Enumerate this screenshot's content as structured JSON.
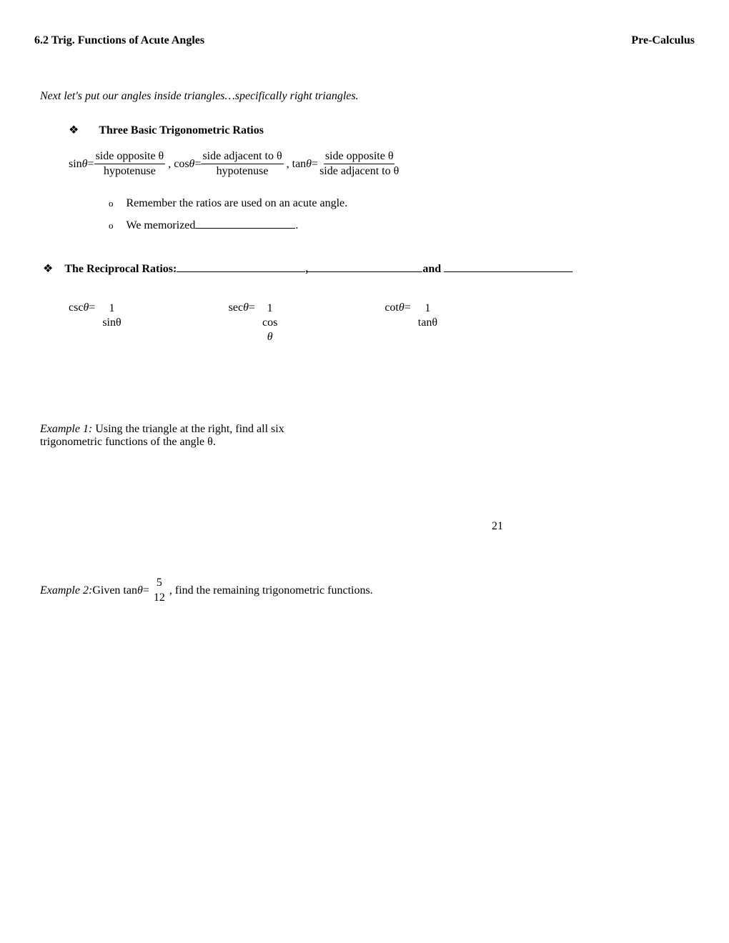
{
  "header": {
    "left": "6.2 Trig. Functions of Acute Angles",
    "right": "Pre-Calculus"
  },
  "intro": "Next let's put our angles inside triangles…specifically right triangles.",
  "bullet_symbol": "❖",
  "sub_bullet_symbol": "o",
  "section1": {
    "title": "Three Basic Trigonometric Ratios",
    "sin_label": "sin",
    "cos_label": "cos",
    "tan_label": "tan",
    "theta": "θ",
    "eq": " = ",
    "comma": ",  ",
    "sin_num": "side opposite θ",
    "sin_den": "hypotenuse",
    "cos_num": "side adjacent to θ",
    "cos_den": "hypotenuse",
    "tan_num": "side opposite θ",
    "tan_den": "side adjacent to θ",
    "sub1": "Remember the ratios are used on an acute angle.",
    "sub2_a": "We memorized",
    "sub2_b": "."
  },
  "section2": {
    "title": "The Reciprocal Ratios:",
    "comma": ",",
    "and": "and",
    "csc_label": "csc",
    "sec_label": "sec",
    "cot_label": "cot",
    "one": "1",
    "sin": "sinθ",
    "cos_a": "cos",
    "cos_b": "θ",
    "tan": "tanθ",
    "theta": "θ",
    "eq": " = "
  },
  "example1": {
    "label": "Example 1:",
    "text_a": "  Using the triangle at the right, find all six",
    "text_b": "trigonometric functions of the angle θ."
  },
  "triangle_value": "21",
  "example2": {
    "label": "Example 2:",
    "text_a": "  Given tan ",
    "theta": "θ",
    "eq": "  =  ",
    "num": "5",
    "den": "12",
    "text_b": " , find the remaining trigonometric functions."
  },
  "blank_widths": {
    "memorized": 140,
    "recip1": 180,
    "recip2": 160,
    "recip3": 180
  },
  "colors": {
    "text": "#000000",
    "background": "#ffffff"
  },
  "fonts": {
    "body_family": "Times New Roman",
    "body_size_pt": 12
  }
}
